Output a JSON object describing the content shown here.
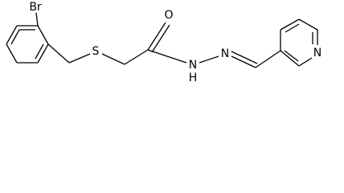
{
  "atoms": {
    "bromine": "Br",
    "sulfur": "S",
    "oxygen": "O",
    "hydrazide_n": "N",
    "hydrazide_h": "H",
    "imine_n": "N",
    "pyridine_n": "N"
  }
}
